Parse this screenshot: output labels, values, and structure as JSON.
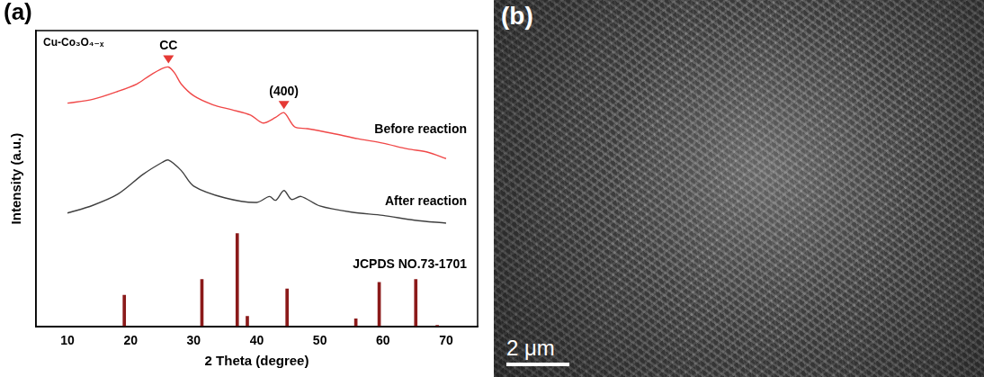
{
  "chart_data": {
    "type": "line",
    "panel": "(a)",
    "title": "Cu-Co₃O₄₋ₓ",
    "x_label": "2 Theta (degree)",
    "y_label": "Intensity (a.u.)",
    "xlim": [
      10,
      70
    ],
    "xticks": [
      10,
      20,
      30,
      40,
      50,
      60,
      70
    ],
    "ylim": [
      0,
      100
    ],
    "tick_labels": "x",
    "grid": false,
    "series": [
      {
        "name": "Before reaction",
        "type": "line",
        "color": "#f04848",
        "x": [
          10,
          14,
          18,
          21,
          23,
          25,
          26,
          27,
          28,
          30,
          33,
          36,
          39,
          41,
          43,
          44.3,
          46,
          48,
          52,
          56,
          60,
          64,
          67,
          70
        ],
        "values": [
          75.5,
          76.8,
          79.5,
          82,
          84.8,
          87.2,
          87.7,
          85.6,
          82,
          78,
          75,
          73.3,
          71.5,
          68.8,
          70.7,
          72.3,
          67.5,
          66.9,
          65.3,
          63.5,
          62,
          60,
          59,
          56.8
        ]
      },
      {
        "name": "After reaction",
        "type": "line",
        "color": "#404040",
        "x": [
          10,
          14,
          18,
          22,
          25,
          26,
          28,
          30,
          35,
          40,
          42,
          43,
          44.3,
          45.5,
          47,
          50,
          55,
          60,
          65,
          70
        ],
        "values": [
          38.4,
          41,
          44.8,
          51.5,
          55.5,
          56.3,
          52.8,
          47.5,
          43.5,
          42,
          44,
          42.7,
          46,
          43,
          44,
          40.8,
          38.7,
          37.6,
          36,
          35
        ]
      },
      {
        "name": "JCPDS NO.73-1701",
        "type": "bar",
        "color": "#8b1a1a",
        "x": [
          19,
          31.3,
          36.9,
          38.5,
          44.8,
          55.7,
          59.4,
          65.2,
          68.6
        ],
        "values": [
          10.7,
          16,
          31.5,
          3.5,
          12.8,
          2.7,
          15,
          16,
          0.5
        ]
      }
    ],
    "annotations": [
      {
        "text": "CC",
        "x": 26,
        "y": 87.7,
        "marker": "triangle",
        "color": "#e53935"
      },
      {
        "text": "(400)",
        "x": 44.3,
        "y": 72.3,
        "marker": "triangle",
        "color": "#e53935"
      }
    ]
  },
  "image_panel": {
    "panel": "(b)",
    "scale_bar": "2 μm"
  }
}
